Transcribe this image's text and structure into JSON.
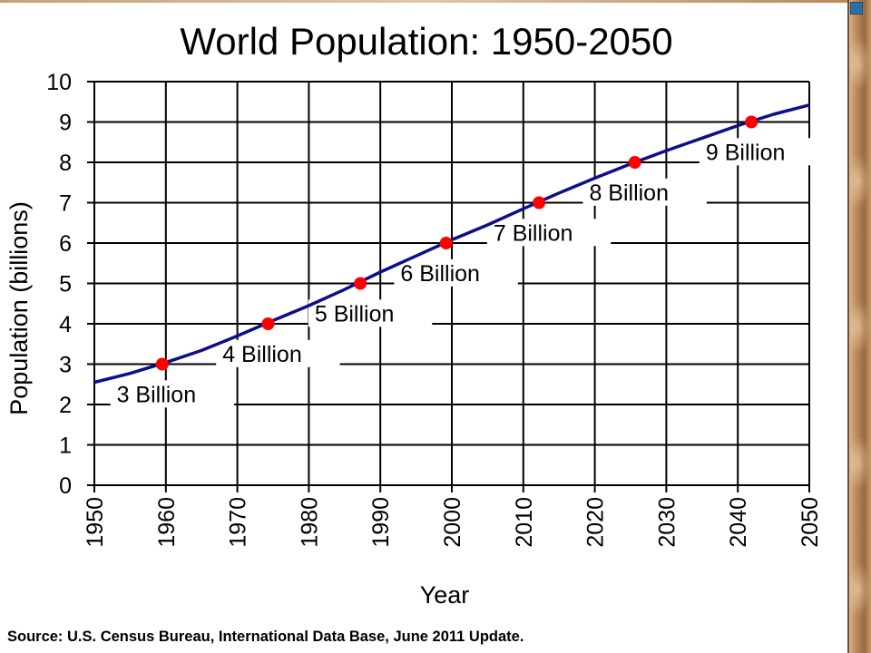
{
  "colors": {
    "line": "#0e0e8a",
    "marker": "#ff0000",
    "grid": "#000000"
  },
  "chart_data": {
    "type": "line",
    "title": "World Population: 1950-2050",
    "xlabel": "Year",
    "ylabel": "Population (billions)",
    "xlim": [
      1950,
      2050
    ],
    "ylim": [
      0,
      10
    ],
    "x_ticks": [
      "1950",
      "1960",
      "1970",
      "1980",
      "1990",
      "2000",
      "2010",
      "2020",
      "2030",
      "2040",
      "2050"
    ],
    "y_ticks": [
      "0",
      "1",
      "2",
      "3",
      "4",
      "5",
      "6",
      "7",
      "8",
      "9",
      "10"
    ],
    "grid": true,
    "series": [
      {
        "x": [
          1950,
          1955,
          1960,
          1965,
          1970,
          1975,
          1980,
          1985,
          1990,
          1995,
          2000,
          2005,
          2010,
          2015,
          2020,
          2025,
          2030,
          2035,
          2040,
          2045,
          2050
        ],
        "values": [
          2.55,
          2.77,
          3.04,
          3.34,
          3.7,
          4.08,
          4.45,
          4.85,
          5.28,
          5.68,
          6.08,
          6.45,
          6.85,
          7.24,
          7.61,
          7.96,
          8.29,
          8.6,
          8.91,
          9.19,
          9.42
        ]
      }
    ],
    "milestones": [
      {
        "x": 1959.5,
        "y": 3,
        "label": "3 Billion"
      },
      {
        "x": 1974.3,
        "y": 4,
        "label": "4 Billion"
      },
      {
        "x": 1987.2,
        "y": 5,
        "label": "5 Billion"
      },
      {
        "x": 1999.2,
        "y": 6,
        "label": "6 Billion"
      },
      {
        "x": 2012.2,
        "y": 7,
        "label": "7 Billion"
      },
      {
        "x": 2025.6,
        "y": 8,
        "label": "8 Billion"
      },
      {
        "x": 2041.9,
        "y": 9,
        "label": "9 Billion"
      }
    ]
  },
  "source": "Source: U.S. Census Bureau, International Data Base, June 2011 Update."
}
